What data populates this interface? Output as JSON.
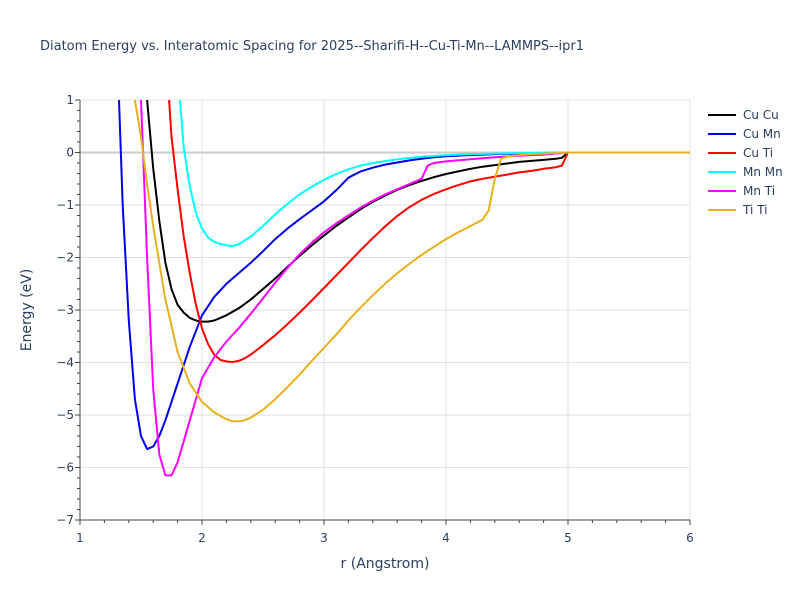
{
  "chart_data": {
    "type": "line",
    "title": "Diatom Energy vs. Interatomic Spacing for 2025--Sharifi-H--Cu-Ti-Mn--LAMMPS--ipr1",
    "xlabel": "r (Angstrom)",
    "ylabel": "Energy (eV)",
    "xlim": [
      1,
      6
    ],
    "ylim": [
      -7,
      1
    ],
    "xticks": [
      "1",
      "2",
      "3",
      "4",
      "5",
      "6"
    ],
    "yticks": [
      "1",
      "0",
      "−1",
      "−2",
      "−3",
      "−4",
      "−5",
      "−6",
      "−7"
    ],
    "grid": true,
    "legend_position": "top-right",
    "series": [
      {
        "name": "Cu Cu",
        "color": "#000000",
        "x": [
          1.55,
          1.6,
          1.65,
          1.7,
          1.75,
          1.8,
          1.85,
          1.9,
          1.95,
          2.0,
          2.05,
          2.1,
          2.15,
          2.2,
          2.3,
          2.4,
          2.5,
          2.6,
          2.7,
          2.8,
          2.9,
          3.0,
          3.1,
          3.2,
          3.3,
          3.4,
          3.5,
          3.6,
          3.7,
          3.8,
          3.9,
          4.0,
          4.1,
          4.2,
          4.3,
          4.4,
          4.5,
          4.6,
          4.7,
          4.8,
          4.9,
          4.95,
          5.0,
          5.5,
          6.0
        ],
        "y": [
          1.0,
          -0.3,
          -1.3,
          -2.1,
          -2.6,
          -2.9,
          -3.05,
          -3.15,
          -3.2,
          -3.22,
          -3.22,
          -3.2,
          -3.15,
          -3.1,
          -2.97,
          -2.8,
          -2.6,
          -2.4,
          -2.18,
          -1.97,
          -1.77,
          -1.58,
          -1.4,
          -1.24,
          -1.08,
          -0.94,
          -0.82,
          -0.71,
          -0.62,
          -0.54,
          -0.47,
          -0.41,
          -0.36,
          -0.31,
          -0.27,
          -0.24,
          -0.21,
          -0.18,
          -0.16,
          -0.14,
          -0.12,
          -0.1,
          0.0,
          0.0,
          0.0
        ]
      },
      {
        "name": "Cu Mn",
        "color": "#0000ee",
        "x": [
          1.32,
          1.35,
          1.4,
          1.45,
          1.5,
          1.55,
          1.6,
          1.65,
          1.7,
          1.8,
          1.9,
          2.0,
          2.1,
          2.2,
          2.3,
          2.4,
          2.5,
          2.6,
          2.7,
          2.8,
          2.9,
          3.0,
          3.1,
          3.2,
          3.3,
          3.4,
          3.5,
          3.6,
          3.7,
          3.8,
          3.9,
          4.0,
          4.2,
          4.4,
          4.6,
          4.8,
          5.0,
          5.5,
          6.0
        ],
        "y": [
          1.0,
          -1.0,
          -3.2,
          -4.7,
          -5.4,
          -5.65,
          -5.6,
          -5.4,
          -5.1,
          -4.4,
          -3.7,
          -3.1,
          -2.75,
          -2.5,
          -2.3,
          -2.1,
          -1.88,
          -1.65,
          -1.45,
          -1.27,
          -1.1,
          -0.93,
          -0.72,
          -0.48,
          -0.36,
          -0.29,
          -0.23,
          -0.19,
          -0.15,
          -0.12,
          -0.09,
          -0.07,
          -0.05,
          -0.03,
          -0.02,
          -0.01,
          0.0,
          0.0,
          0.0
        ]
      },
      {
        "name": "Cu Ti",
        "color": "#ff0000",
        "x": [
          1.73,
          1.75,
          1.8,
          1.85,
          1.9,
          1.95,
          2.0,
          2.05,
          2.1,
          2.15,
          2.2,
          2.25,
          2.3,
          2.35,
          2.4,
          2.5,
          2.6,
          2.7,
          2.8,
          2.9,
          3.0,
          3.1,
          3.2,
          3.3,
          3.4,
          3.5,
          3.6,
          3.7,
          3.8,
          3.9,
          4.0,
          4.1,
          4.2,
          4.3,
          4.4,
          4.5,
          4.6,
          4.7,
          4.8,
          4.9,
          4.95,
          5.0,
          5.5,
          6.0
        ],
        "y": [
          1.0,
          0.3,
          -0.7,
          -1.6,
          -2.3,
          -2.9,
          -3.35,
          -3.65,
          -3.85,
          -3.95,
          -3.98,
          -3.99,
          -3.97,
          -3.92,
          -3.85,
          -3.67,
          -3.48,
          -3.27,
          -3.05,
          -2.82,
          -2.58,
          -2.34,
          -2.1,
          -1.86,
          -1.63,
          -1.41,
          -1.21,
          -1.04,
          -0.9,
          -0.79,
          -0.7,
          -0.62,
          -0.55,
          -0.5,
          -0.46,
          -0.42,
          -0.38,
          -0.35,
          -0.31,
          -0.28,
          -0.25,
          0.0,
          0.0,
          0.0
        ]
      },
      {
        "name": "Mn Mn",
        "color": "#00ffff",
        "x": [
          1.82,
          1.85,
          1.9,
          1.95,
          2.0,
          2.05,
          2.1,
          2.15,
          2.2,
          2.25,
          2.3,
          2.4,
          2.5,
          2.6,
          2.7,
          2.8,
          2.9,
          3.0,
          3.1,
          3.2,
          3.3,
          3.4,
          3.6,
          3.8,
          4.0,
          4.2,
          4.4,
          4.6,
          4.8,
          5.0,
          5.5,
          6.0
        ],
        "y": [
          1.0,
          0.1,
          -0.65,
          -1.15,
          -1.45,
          -1.62,
          -1.7,
          -1.74,
          -1.77,
          -1.78,
          -1.75,
          -1.6,
          -1.4,
          -1.18,
          -0.98,
          -0.8,
          -0.65,
          -0.52,
          -0.41,
          -0.32,
          -0.25,
          -0.2,
          -0.13,
          -0.08,
          -0.05,
          -0.03,
          -0.02,
          -0.01,
          -0.005,
          0.0,
          0.0,
          0.0
        ]
      },
      {
        "name": "Mn Ti",
        "color": "#ff00ff",
        "x": [
          1.5,
          1.55,
          1.6,
          1.65,
          1.7,
          1.75,
          1.8,
          1.85,
          1.9,
          2.0,
          2.1,
          2.2,
          2.3,
          2.4,
          2.5,
          2.6,
          2.7,
          2.8,
          2.9,
          3.0,
          3.1,
          3.2,
          3.3,
          3.4,
          3.5,
          3.6,
          3.7,
          3.8,
          3.85,
          3.9,
          4.0,
          4.2,
          4.4,
          4.6,
          4.8,
          5.0,
          5.5,
          6.0
        ],
        "y": [
          1.0,
          -2.0,
          -4.5,
          -5.75,
          -6.15,
          -6.15,
          -5.9,
          -5.5,
          -5.1,
          -4.3,
          -3.9,
          -3.6,
          -3.35,
          -3.07,
          -2.78,
          -2.48,
          -2.2,
          -1.94,
          -1.72,
          -1.52,
          -1.35,
          -1.2,
          -1.05,
          -0.92,
          -0.8,
          -0.7,
          -0.6,
          -0.5,
          -0.25,
          -0.2,
          -0.17,
          -0.13,
          -0.09,
          -0.06,
          -0.04,
          0.0,
          0.0,
          0.0
        ]
      },
      {
        "name": "Ti Ti",
        "color": "#e6b01e",
        "x": [
          1.45,
          1.5,
          1.55,
          1.6,
          1.7,
          1.8,
          1.9,
          2.0,
          2.1,
          2.2,
          2.25,
          2.3,
          2.35,
          2.4,
          2.5,
          2.6,
          2.7,
          2.8,
          2.9,
          3.0,
          3.1,
          3.2,
          3.3,
          3.4,
          3.5,
          3.6,
          3.7,
          3.8,
          3.9,
          4.0,
          4.1,
          4.2,
          4.3,
          4.35,
          4.4,
          4.45,
          4.5,
          4.6,
          4.7,
          4.8,
          4.9,
          5.0,
          5.5,
          6.0
        ],
        "y": [
          1.0,
          0.3,
          -0.6,
          -1.4,
          -2.8,
          -3.8,
          -4.4,
          -4.75,
          -4.95,
          -5.08,
          -5.12,
          -5.12,
          -5.1,
          -5.05,
          -4.9,
          -4.7,
          -4.47,
          -4.23,
          -3.97,
          -3.72,
          -3.47,
          -3.2,
          -2.95,
          -2.72,
          -2.5,
          -2.3,
          -2.12,
          -1.95,
          -1.8,
          -1.65,
          -1.52,
          -1.4,
          -1.28,
          -1.1,
          -0.5,
          -0.12,
          -0.08,
          -0.05,
          -0.03,
          -0.02,
          -0.01,
          0.0,
          0.0,
          0.0
        ]
      }
    ]
  }
}
